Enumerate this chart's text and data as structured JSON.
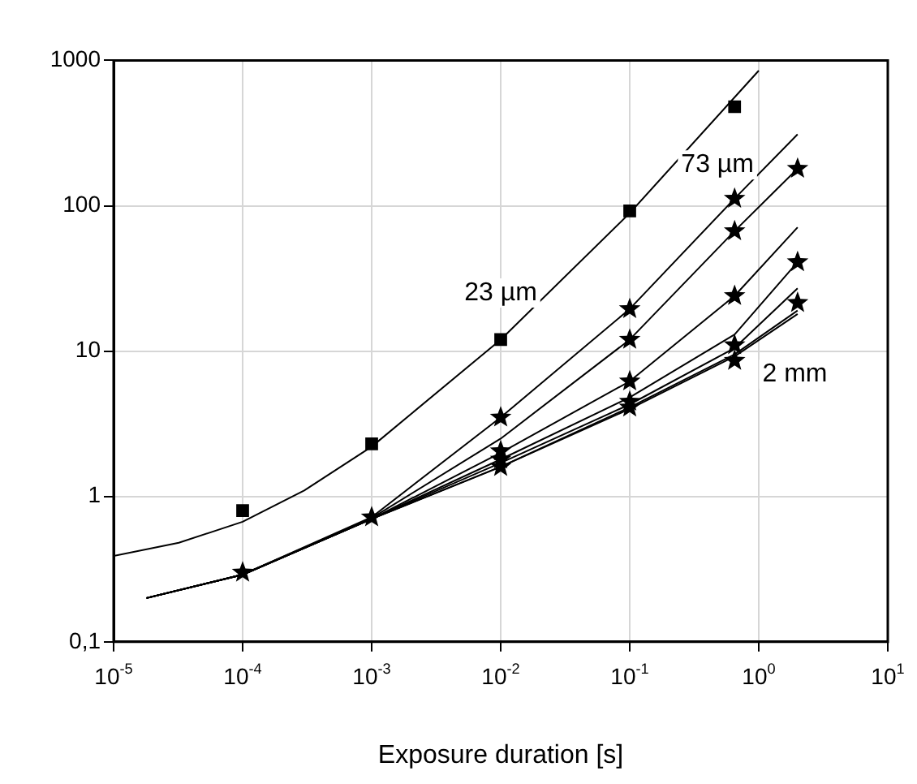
{
  "chart_data": {
    "type": "scatter",
    "xlabel": "Exposure duration [s]",
    "log": "xy",
    "grid": true,
    "legend": false,
    "xlim": [
      1e-05,
      10
    ],
    "ylim": [
      0.1,
      1000
    ],
    "xticks": [
      {
        "value": 1e-05,
        "label": "10$^{-5}$"
      },
      {
        "value": 0.0001,
        "label": "10$^{-4}$"
      },
      {
        "value": 0.001,
        "label": "10$^{-3}$"
      },
      {
        "value": 0.01,
        "label": "10$^{-2}$"
      },
      {
        "value": 0.1,
        "label": "10$^{-1}$"
      },
      {
        "value": 1,
        "label": "10$^{0}$"
      },
      {
        "value": 10,
        "label": "10$^{1}$"
      }
    ],
    "yticks": [
      {
        "value": 0.1,
        "label": "0,1"
      },
      1,
      10,
      100,
      1000
    ],
    "series": [
      {
        "marker": "square",
        "color": "#000000",
        "x": [
          0.0001,
          0.001,
          0.01,
          0.1,
          0.65
        ],
        "values": [
          0.8,
          2.3,
          12,
          92,
          480
        ]
      },
      {
        "marker": "star",
        "color": "#000000",
        "x": [
          0.0001,
          0.001,
          0.01,
          0.01,
          0.01,
          0.01,
          0.1,
          0.1,
          0.1,
          0.1,
          0.1,
          0.65,
          0.65,
          0.65,
          0.65,
          0.65,
          2,
          2,
          2
        ],
        "values": [
          0.3,
          0.72,
          3.5,
          2.05,
          1.8,
          1.6,
          19.5,
          12,
          6.2,
          4.5,
          4.1,
          112,
          67,
          24,
          11,
          8.6,
          180,
          41,
          21.5
        ]
      },
      {
        "type": "line",
        "marker": "none",
        "color": "#000000",
        "x": [
          1e-05,
          3.2e-05,
          0.0001,
          0.0003,
          0.001,
          0.01,
          0.1,
          1
        ],
        "values": [
          0.39,
          0.48,
          0.67,
          1.1,
          2.2,
          12,
          89,
          850
        ]
      },
      {
        "type": "line",
        "marker": "none",
        "color": "#000000",
        "x": [
          1.8e-05,
          0.0001,
          0.001,
          0.01,
          0.1,
          0.65,
          2
        ],
        "values": [
          0.2,
          0.29,
          0.72,
          3.5,
          19.5,
          112,
          310
        ]
      },
      {
        "type": "line",
        "marker": "none",
        "color": "#000000",
        "x": [
          1.8e-05,
          0.0001,
          0.001,
          0.01,
          0.1,
          0.65,
          2
        ],
        "values": [
          0.2,
          0.29,
          0.71,
          2.5,
          12,
          67,
          180
        ]
      },
      {
        "type": "line",
        "marker": "none",
        "color": "#000000",
        "x": [
          1.8e-05,
          0.0001,
          0.001,
          0.01,
          0.1,
          0.65,
          2
        ],
        "values": [
          0.2,
          0.29,
          0.7,
          2,
          6.2,
          24,
          71
        ]
      },
      {
        "type": "line",
        "marker": "none",
        "color": "#000000",
        "x": [
          1.8e-05,
          0.0001,
          0.001,
          0.01,
          0.1,
          0.65,
          2
        ],
        "values": [
          0.2,
          0.29,
          0.7,
          1.8,
          4.8,
          13,
          41
        ]
      },
      {
        "type": "line",
        "marker": "none",
        "color": "#000000",
        "x": [
          1.8e-05,
          0.0001,
          0.001,
          0.01,
          0.1,
          0.65,
          2
        ],
        "values": [
          0.2,
          0.29,
          0.7,
          1.7,
          4.3,
          10.5,
          27
        ]
      },
      {
        "type": "line",
        "marker": "none",
        "color": "#000000",
        "x": [
          1.8e-05,
          0.0001,
          0.001,
          0.01,
          0.1,
          0.65,
          2
        ],
        "values": [
          0.2,
          0.29,
          0.7,
          1.6,
          4.1,
          9.5,
          19
        ]
      },
      {
        "type": "line",
        "marker": "none",
        "color": "#000000",
        "x": [
          1.8e-05,
          0.0001,
          0.001,
          0.01,
          0.1,
          0.65,
          2
        ],
        "values": [
          0.2,
          0.29,
          0.7,
          1.6,
          4,
          9.2,
          18
        ]
      }
    ],
    "annotations": [
      "23 µm",
      "73 µm",
      "2 mm"
    ]
  }
}
